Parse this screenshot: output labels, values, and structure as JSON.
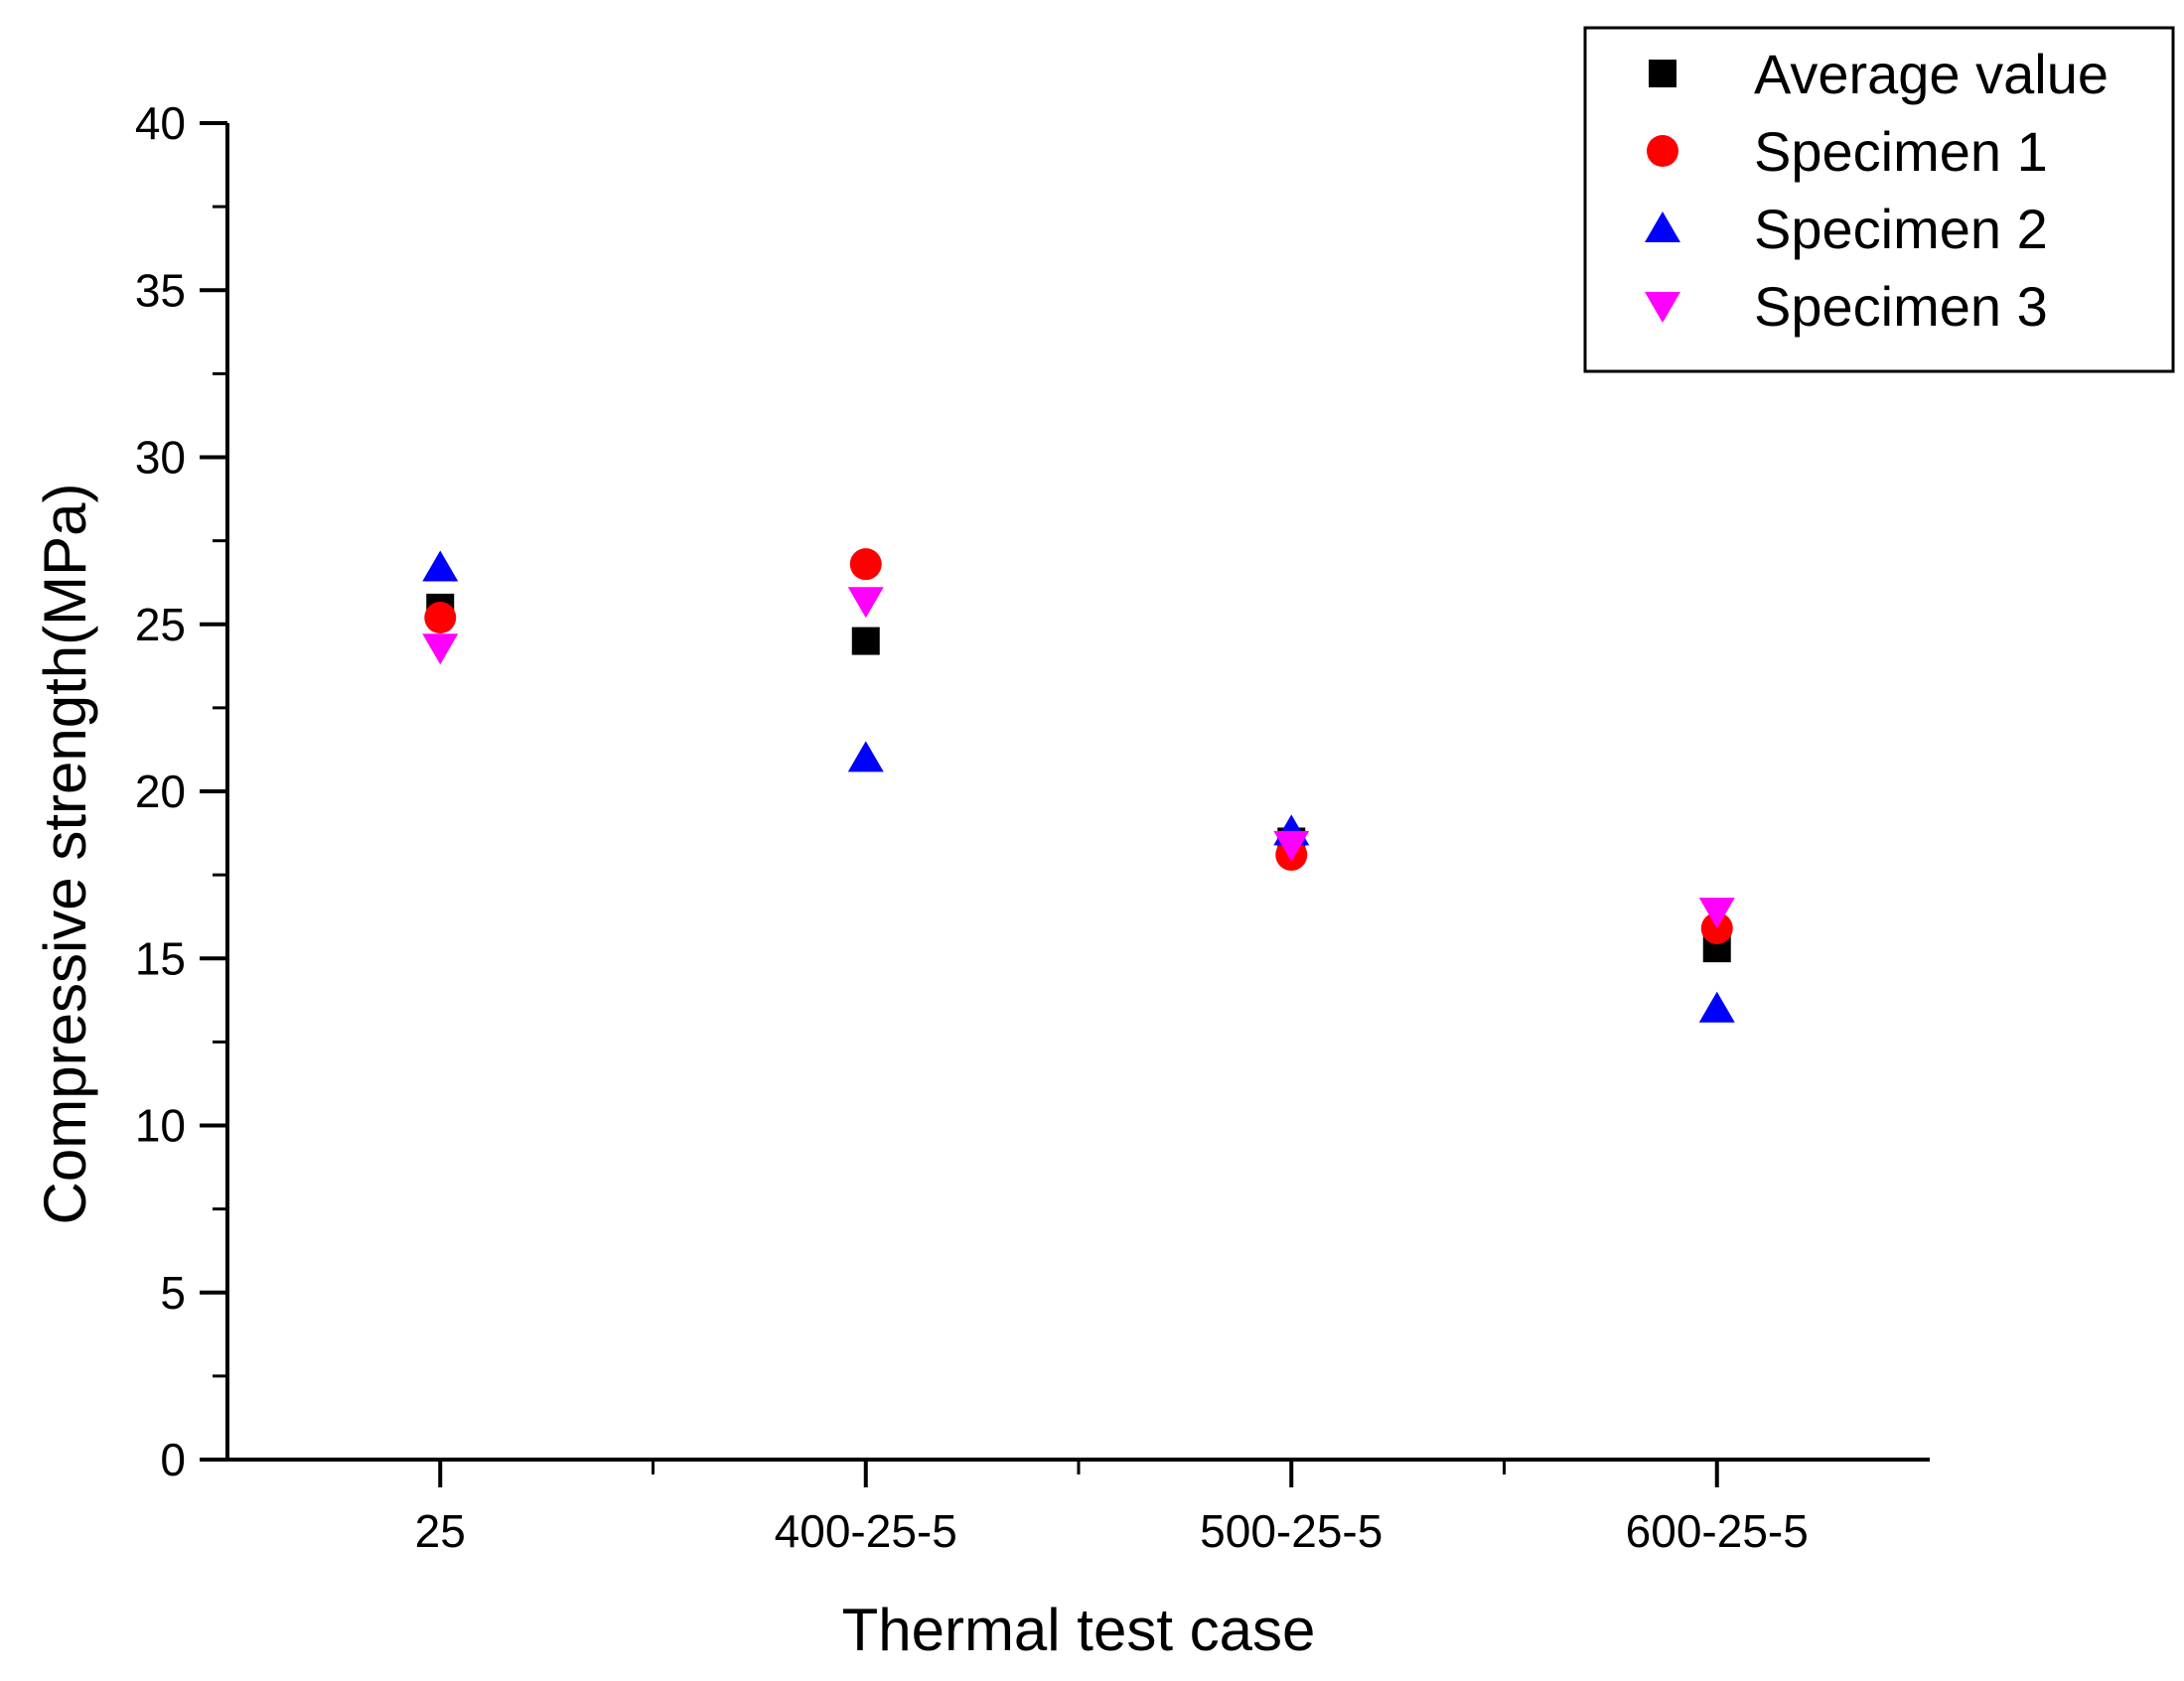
{
  "chart_data": {
    "type": "scatter",
    "title": "",
    "xlabel": "Thermal test case",
    "ylabel": "Compressive strength(MPa)",
    "categories": [
      "25",
      "400-25-5",
      "500-25-5",
      "600-25-5"
    ],
    "ylim": [
      0,
      40
    ],
    "yticks": [
      "0",
      "5",
      "10",
      "15",
      "20",
      "25",
      "30",
      "35",
      "40"
    ],
    "legend_position": "top-right",
    "grid": false,
    "series": [
      {
        "name": "Average value",
        "marker": "square",
        "color": "#000000",
        "values": [
          25.5,
          24.5,
          18.5,
          15.3
        ]
      },
      {
        "name": "Specimen 1",
        "marker": "circle",
        "color": "#ff0000",
        "values": [
          25.2,
          26.8,
          18.1,
          15.9
        ]
      },
      {
        "name": "Specimen 2",
        "marker": "triangle-up",
        "color": "#0000ff",
        "values": [
          26.7,
          21.0,
          18.8,
          13.5
        ]
      },
      {
        "name": "Specimen 3",
        "marker": "triangle-down",
        "color": "#ff00ff",
        "values": [
          24.3,
          25.7,
          18.4,
          16.4
        ]
      }
    ]
  }
}
